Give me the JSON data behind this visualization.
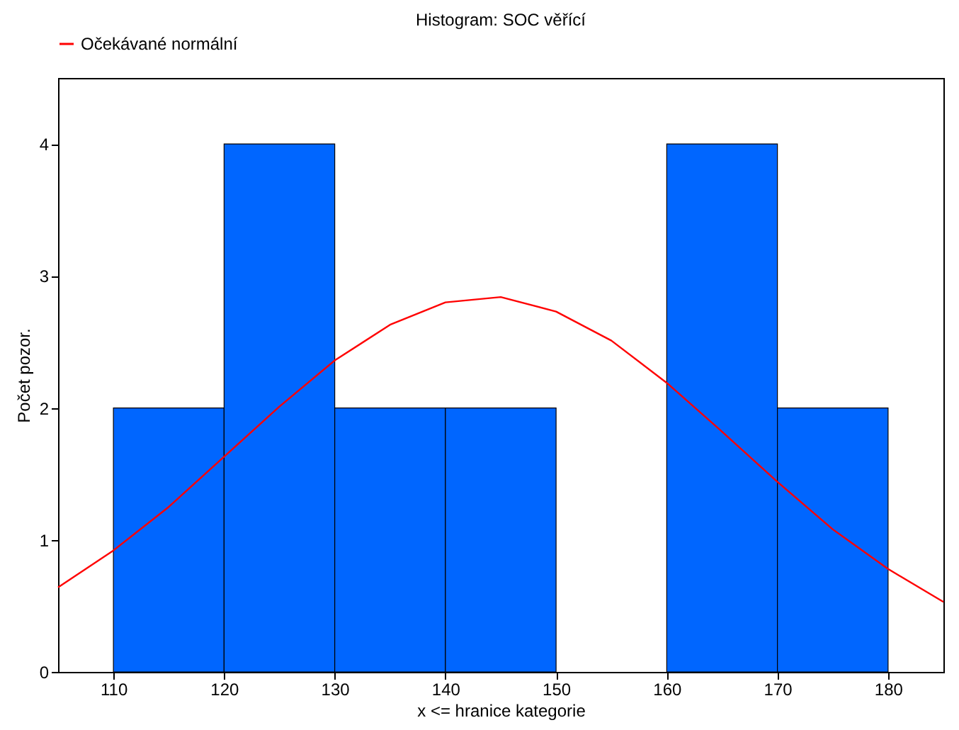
{
  "chart_data": {
    "type": "histogram",
    "title": "Histogram: SOC věřící",
    "xlabel": "x <= hranice kategorie",
    "ylabel": "Počet pozor.",
    "bins": [
      110,
      120,
      130,
      140,
      150,
      160,
      170,
      180
    ],
    "values": [
      2,
      4,
      2,
      2,
      0,
      4,
      2
    ],
    "color": "#0066ff",
    "series": [
      {
        "type": "line",
        "name": "Očekávané normální",
        "color": "#ff0000",
        "x": [
          105,
          110,
          115,
          120,
          125,
          130,
          135,
          140,
          145,
          150,
          155,
          160,
          165,
          170,
          175,
          180,
          185
        ],
        "values": [
          0.64,
          0.92,
          1.25,
          1.63,
          2.01,
          2.36,
          2.63,
          2.8,
          2.84,
          2.73,
          2.51,
          2.19,
          1.82,
          1.44,
          1.08,
          0.78,
          0.53
        ]
      }
    ],
    "xlim": [
      105,
      185
    ],
    "xticks": [
      110,
      120,
      130,
      140,
      150,
      160,
      170,
      180
    ],
    "ylim": [
      0,
      4.5
    ],
    "yticks": [
      0,
      1,
      2,
      3,
      4
    ],
    "legend": "top",
    "grid": false
  }
}
